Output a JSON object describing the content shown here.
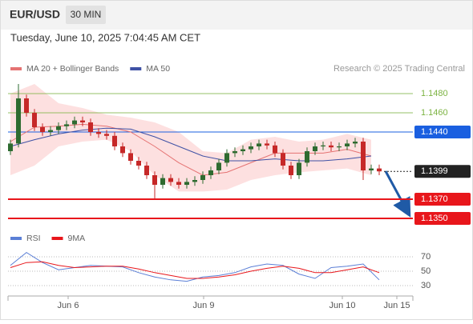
{
  "header": {
    "symbol": "EUR/USD",
    "timeframe": "30 MIN",
    "timestamp": "Tuesday, June 10, 2025 7:04:45 AM CET"
  },
  "chart_data": [
    {
      "type": "candlestick",
      "source": "Research © 2025 Trading Central",
      "xlim": [
        -0.3,
        50.2
      ],
      "ylim": [
        1.1342,
        1.1498
      ],
      "xticks": [
        {
          "value": 7.2,
          "label": "Jun 6"
        },
        {
          "value": 24.1,
          "label": "Jun 9"
        },
        {
          "value": 41.4,
          "label": "Jun 10"
        },
        {
          "value": 48.2,
          "label": "Jun 15"
        }
      ],
      "candles": {
        "up_color": "#2e6b30",
        "down_color": "#c62828",
        "x": [
          0,
          1,
          2,
          3,
          4,
          5,
          6,
          7,
          8,
          9,
          10,
          11,
          12,
          13,
          14,
          15,
          16,
          17,
          18,
          19,
          20,
          21,
          22,
          23,
          24,
          25,
          26,
          27,
          28,
          29,
          30,
          31,
          32,
          33,
          34,
          35,
          36,
          37,
          38,
          39,
          40,
          41,
          42,
          43,
          44,
          45,
          46
        ],
        "open": [
          1.142,
          1.1428,
          1.1475,
          1.146,
          1.1445,
          1.144,
          1.1442,
          1.1446,
          1.1448,
          1.1452,
          1.145,
          1.144,
          1.1438,
          1.1436,
          1.1425,
          1.1418,
          1.141,
          1.1405,
          1.1395,
          1.1385,
          1.1392,
          1.1388,
          1.1385,
          1.1388,
          1.139,
          1.1395,
          1.14,
          1.1408,
          1.1418,
          1.142,
          1.1422,
          1.1425,
          1.1428,
          1.1426,
          1.1418,
          1.1405,
          1.1395,
          1.1408,
          1.142,
          1.1425,
          1.1426,
          1.1424,
          1.1425,
          1.1428,
          1.143,
          1.14,
          1.1402
        ],
        "high": [
          1.1432,
          1.149,
          1.1479,
          1.1464,
          1.1449,
          1.1446,
          1.145,
          1.1452,
          1.1456,
          1.1456,
          1.1454,
          1.1444,
          1.1442,
          1.144,
          1.1429,
          1.1422,
          1.1414,
          1.1409,
          1.1399,
          1.1396,
          1.1396,
          1.1392,
          1.1392,
          1.1394,
          1.1399,
          1.1404,
          1.1412,
          1.1422,
          1.1424,
          1.1426,
          1.1429,
          1.1432,
          1.1432,
          1.143,
          1.1422,
          1.1409,
          1.1412,
          1.1424,
          1.1429,
          1.143,
          1.143,
          1.1429,
          1.1432,
          1.1434,
          1.1434,
          1.1406,
          1.1406
        ],
        "low": [
          1.1416,
          1.1424,
          1.1456,
          1.1441,
          1.1436,
          1.1436,
          1.1438,
          1.1442,
          1.1444,
          1.1446,
          1.1436,
          1.1434,
          1.1432,
          1.1421,
          1.1414,
          1.1406,
          1.1401,
          1.1391,
          1.137,
          1.1381,
          1.1384,
          1.1381,
          1.1381,
          1.1384,
          1.1386,
          1.1391,
          1.1396,
          1.1404,
          1.1414,
          1.1416,
          1.1418,
          1.1421,
          1.1422,
          1.1414,
          1.1401,
          1.1391,
          1.1391,
          1.1404,
          1.1416,
          1.1421,
          1.142,
          1.142,
          1.1421,
          1.1424,
          1.139,
          1.1396,
          1.1395
        ],
        "close": [
          1.1428,
          1.1475,
          1.146,
          1.1445,
          1.144,
          1.1442,
          1.1446,
          1.1448,
          1.1452,
          1.145,
          1.144,
          1.1438,
          1.1436,
          1.1425,
          1.1418,
          1.141,
          1.1405,
          1.1395,
          1.1385,
          1.1392,
          1.1388,
          1.1385,
          1.1388,
          1.139,
          1.1395,
          1.14,
          1.1408,
          1.1418,
          1.142,
          1.1422,
          1.1425,
          1.1428,
          1.1426,
          1.1418,
          1.1405,
          1.1395,
          1.1408,
          1.142,
          1.1425,
          1.1426,
          1.1424,
          1.1425,
          1.1428,
          1.143,
          1.14,
          1.1402,
          1.1399
        ]
      },
      "series": [
        {
          "name": "MA 20 + Bollinger Bands",
          "color": "#e57373",
          "band_color": "#fde0e0",
          "x": [
            0,
            3,
            6,
            9,
            12,
            15,
            18,
            21,
            24,
            27,
            30,
            33,
            36,
            39,
            42,
            45
          ],
          "values": [
            1.143,
            1.1445,
            1.1446,
            1.1448,
            1.1446,
            1.144,
            1.1425,
            1.1408,
            1.1395,
            1.1398,
            1.1408,
            1.1418,
            1.1418,
            1.1418,
            1.1422,
            1.1415
          ],
          "band_upper": [
            1.148,
            1.149,
            1.147,
            1.1465,
            1.1458,
            1.1455,
            1.145,
            1.144,
            1.142,
            1.1418,
            1.1432,
            1.1435,
            1.143,
            1.1432,
            1.1438,
            1.1432
          ],
          "band_lower": [
            1.1395,
            1.1405,
            1.1425,
            1.143,
            1.1432,
            1.142,
            1.1395,
            1.1378,
            1.1378,
            1.138,
            1.139,
            1.1395,
            1.1398,
            1.14,
            1.1402,
            1.1395
          ]
        },
        {
          "name": "MA 50",
          "color": "#3f51a5",
          "x": [
            0,
            3,
            6,
            9,
            12,
            15,
            18,
            21,
            24,
            27,
            30,
            33,
            36,
            39,
            42,
            45
          ],
          "values": [
            1.1425,
            1.1432,
            1.1438,
            1.1442,
            1.1444,
            1.1443,
            1.1435,
            1.1425,
            1.1415,
            1.141,
            1.141,
            1.1412,
            1.141,
            1.141,
            1.1412,
            1.1415
          ]
        }
      ],
      "levels": [
        {
          "value": 1.148,
          "label": "1.1480",
          "color": "#7cb342",
          "boxed": false,
          "line": "solid"
        },
        {
          "value": 1.146,
          "label": "1.1460",
          "color": "#7cb342",
          "boxed": false,
          "line": "solid"
        },
        {
          "value": 1.144,
          "label": "1.1440",
          "color": "#1a5fe0",
          "boxed": true,
          "line": "solid"
        },
        {
          "value": 1.1399,
          "label": "1.1399",
          "color": "#222222",
          "boxed": true,
          "line": "dotted"
        },
        {
          "value": 1.137,
          "label": "1.1370",
          "color": "#e8161b",
          "boxed": true,
          "line": "thick"
        },
        {
          "value": 1.135,
          "label": "1.1350",
          "color": "#e8161b",
          "boxed": true,
          "line": "thick"
        }
      ]
    },
    {
      "type": "line",
      "xlim": [
        -0.3,
        50.2
      ],
      "ylim": [
        17.8,
        82.2
      ],
      "yticks": [
        70,
        50,
        30
      ],
      "series": [
        {
          "name": "RSI",
          "color": "#5b7fd6",
          "x": [
            0,
            2,
            4,
            6,
            8,
            10,
            12,
            14,
            16,
            18,
            20,
            22,
            24,
            26,
            28,
            30,
            32,
            34,
            36,
            38,
            40,
            42,
            44,
            46
          ],
          "values": [
            58,
            76,
            62,
            52,
            55,
            58,
            57,
            56,
            48,
            42,
            38,
            36,
            42,
            44,
            48,
            56,
            60,
            58,
            46,
            40,
            55,
            57,
            60,
            38
          ]
        },
        {
          "name": "9MA",
          "color": "#e8161b",
          "x": [
            0,
            2,
            4,
            6,
            8,
            10,
            12,
            14,
            16,
            18,
            20,
            22,
            24,
            26,
            28,
            30,
            32,
            34,
            36,
            38,
            40,
            42,
            44,
            46
          ],
          "values": [
            55,
            62,
            63,
            58,
            55,
            56,
            57,
            57,
            53,
            48,
            44,
            40,
            40,
            42,
            45,
            50,
            54,
            57,
            54,
            48,
            48,
            52,
            56,
            48
          ]
        }
      ]
    }
  ]
}
